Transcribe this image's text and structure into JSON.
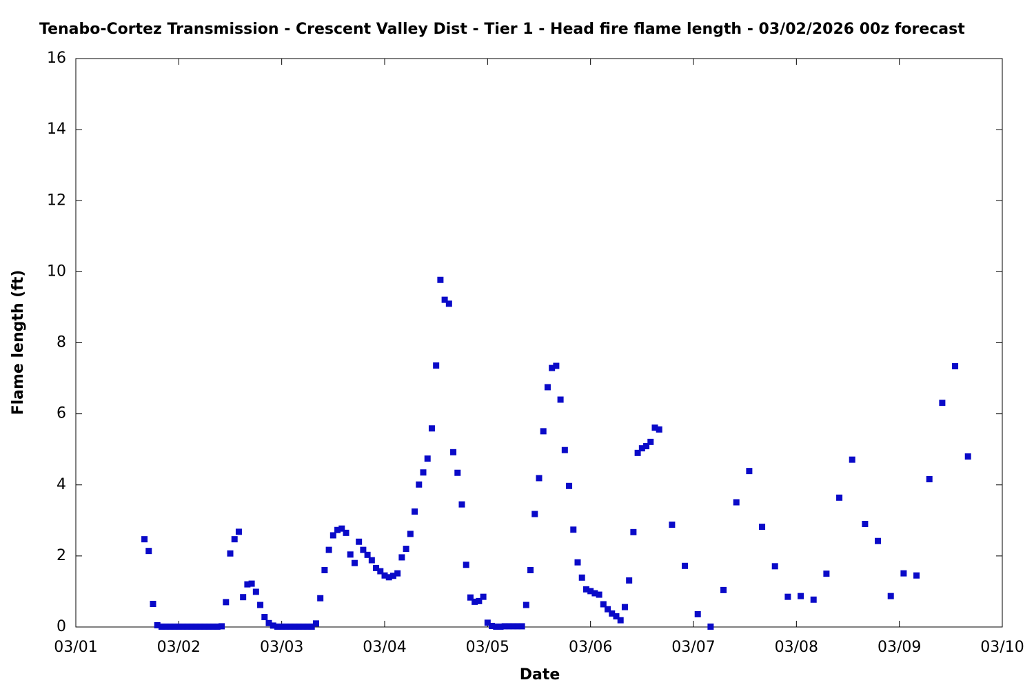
{
  "chart_data": {
    "type": "scatter",
    "title": "Tenabo-Cortez Transmission - Crescent Valley Dist - Tier 1 - Head fire flame length - 03/02/2026 00z forecast",
    "x_label": "Date",
    "y_label": "Flame length (ft)",
    "x": [
      16,
      17,
      18,
      19,
      20,
      21,
      22,
      23,
      24,
      25,
      26,
      27,
      28,
      29,
      30,
      31,
      32,
      33,
      34,
      35,
      36,
      37,
      38,
      39,
      40,
      41,
      42,
      43,
      44,
      45,
      46,
      47,
      48,
      49,
      50,
      51,
      52,
      53,
      54,
      55,
      56,
      57,
      58,
      59,
      60,
      61,
      62,
      63,
      64,
      65,
      66,
      67,
      68,
      69,
      70,
      71,
      72,
      73,
      74,
      75,
      76,
      77,
      78,
      79,
      80,
      81,
      82,
      83,
      84,
      85,
      86,
      87,
      88,
      89,
      90,
      91,
      92,
      93,
      94,
      95,
      96,
      97,
      98,
      99,
      100,
      101,
      102,
      103,
      104,
      105,
      106,
      107,
      108,
      109,
      110,
      111,
      112,
      113,
      114,
      115,
      116,
      117,
      118,
      119,
      120,
      121,
      122,
      123,
      124,
      125,
      126,
      127,
      128,
      129,
      130,
      131,
      132,
      133,
      134,
      135,
      136,
      139,
      142,
      145,
      148,
      151,
      154,
      157,
      160,
      163,
      166,
      169,
      172,
      175,
      178,
      181,
      184,
      187,
      190,
      193,
      196,
      199,
      202,
      205,
      208
    ],
    "series": [
      {
        "color": "#0a0ac8",
        "values": [
          2.47,
          2.14,
          0.65,
          0.05,
          0.01,
          0.01,
          0.01,
          0.01,
          0.01,
          0.01,
          0.01,
          0.01,
          0.01,
          0.01,
          0.01,
          0.01,
          0.01,
          0.01,
          0.02,
          0.7,
          2.07,
          2.47,
          2.68,
          0.84,
          1.2,
          1.22,
          0.99,
          0.62,
          0.28,
          0.11,
          0.04,
          0.01,
          0.01,
          0.01,
          0.01,
          0.01,
          0.01,
          0.01,
          0.01,
          0.01,
          0.1,
          0.81,
          1.6,
          2.17,
          2.58,
          2.73,
          2.77,
          2.65,
          2.04,
          1.8,
          2.4,
          2.17,
          2.03,
          1.88,
          1.66,
          1.57,
          1.45,
          1.4,
          1.44,
          1.51,
          1.96,
          2.2,
          2.62,
          3.25,
          4.01,
          4.35,
          4.74,
          5.59,
          7.36,
          9.77,
          9.21,
          9.1,
          4.92,
          4.34,
          3.45,
          1.75,
          0.83,
          0.71,
          0.73,
          0.85,
          0.12,
          0.03,
          0.01,
          0.01,
          0.02,
          0.02,
          0.02,
          0.02,
          0.02,
          0.62,
          1.6,
          3.18,
          4.19,
          5.51,
          6.75,
          7.29,
          7.35,
          6.4,
          4.98,
          3.97,
          2.74,
          1.82,
          1.39,
          1.06,
          1.01,
          0.95,
          0.91,
          0.64,
          0.5,
          0.38,
          0.3,
          0.19,
          0.56,
          1.31,
          2.67,
          4.9,
          5.03,
          5.09,
          5.21,
          5.61,
          5.56,
          2.88,
          1.72,
          0.36,
          0.01,
          1.04,
          3.51,
          4.39,
          2.82,
          1.71,
          0.85,
          0.87,
          0.77,
          1.5,
          3.64,
          4.71,
          2.9,
          2.42,
          0.87,
          1.51,
          1.45,
          4.16,
          6.31,
          7.34,
          4.8
        ]
      }
    ],
    "xlim": [
      0,
      216
    ],
    "xticks": [
      {
        "value": 0,
        "label": "03/01"
      },
      {
        "value": 24,
        "label": "03/02"
      },
      {
        "value": 48,
        "label": "03/03"
      },
      {
        "value": 72,
        "label": "03/04"
      },
      {
        "value": 96,
        "label": "03/05"
      },
      {
        "value": 120,
        "label": "03/06"
      },
      {
        "value": 144,
        "label": "03/07"
      },
      {
        "value": 168,
        "label": "03/08"
      },
      {
        "value": 192,
        "label": "03/09"
      },
      {
        "value": 216,
        "label": "03/10"
      }
    ],
    "ylim": [
      0,
      16
    ],
    "yticks": [
      0,
      2,
      4,
      6,
      8,
      10,
      12,
      14,
      16
    ],
    "grid": false
  }
}
